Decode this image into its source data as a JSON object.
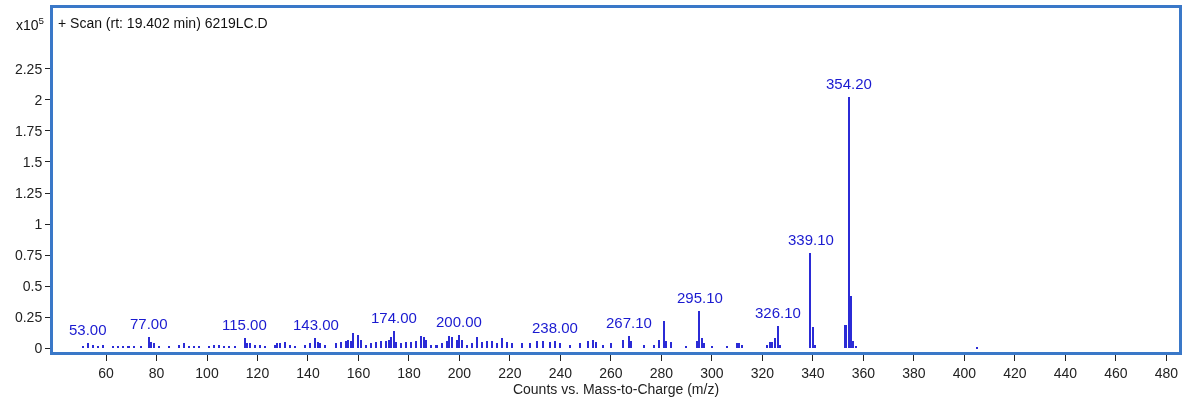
{
  "chart_data": {
    "type": "bar",
    "title": "+ Scan (rt: 19.402 min) 6219LC.D",
    "xlabel": "Counts vs. Mass-to-Charge (m/z)",
    "annotations": [
      "x10$^{5}$",
      {
        "text": "53.00",
        "x": 53,
        "y": 0.04
      },
      {
        "text": "77.00",
        "x": 77,
        "y": 0.09
      },
      {
        "text": "115.00",
        "x": 115,
        "y": 0.08
      },
      {
        "text": "143.00",
        "x": 143,
        "y": 0.08
      },
      {
        "text": "174.00",
        "x": 174,
        "y": 0.14
      },
      {
        "text": "200.00",
        "x": 200,
        "y": 0.11
      },
      {
        "text": "238.00",
        "x": 238,
        "y": 0.06
      },
      {
        "text": "267.10",
        "x": 267.1,
        "y": 0.1
      },
      {
        "text": "295.10",
        "x": 295.1,
        "y": 0.3
      },
      {
        "text": "326.10",
        "x": 326.1,
        "y": 0.18
      },
      {
        "text": "339.10",
        "x": 339.1,
        "y": 0.77
      },
      {
        "text": "354.20",
        "x": 354.2,
        "y": 2.02
      }
    ],
    "x": [
      51,
      53,
      55,
      57,
      59,
      63,
      65,
      67,
      69,
      71,
      74,
      77,
      78,
      79,
      81,
      85,
      89,
      91,
      93,
      95,
      97,
      101,
      103,
      105,
      107,
      109,
      111,
      115,
      116,
      117,
      119,
      121,
      123,
      127,
      128,
      129,
      131,
      133,
      135,
      139,
      141,
      143,
      144,
      145,
      147,
      151,
      153,
      155,
      156,
      157,
      158,
      160,
      161,
      163,
      165,
      167,
      169,
      171,
      172,
      173,
      174,
      175,
      177,
      179,
      181,
      183,
      185,
      186,
      187,
      189,
      191,
      193,
      195,
      196,
      197,
      199,
      200,
      201,
      203,
      205,
      207,
      209,
      211,
      213,
      215,
      217,
      219,
      221,
      225,
      228,
      231,
      233,
      236,
      238,
      240,
      244,
      248,
      251,
      253,
      254,
      257,
      260,
      265,
      267.1,
      268,
      273,
      277,
      279,
      281,
      282,
      284,
      290,
      294,
      295.1,
      296,
      297,
      300,
      306,
      310,
      311,
      312,
      322,
      323,
      324,
      325,
      326.1,
      327,
      339.1,
      340,
      341,
      353,
      354.2,
      355,
      356,
      357,
      405
    ],
    "values": [
      0.02,
      0.04,
      0.03,
      0.02,
      0.03,
      0.02,
      0.02,
      0.02,
      0.02,
      0.02,
      0.02,
      0.09,
      0.05,
      0.04,
      0.02,
      0.02,
      0.03,
      0.04,
      0.02,
      0.02,
      0.02,
      0.02,
      0.03,
      0.03,
      0.02,
      0.02,
      0.02,
      0.08,
      0.04,
      0.04,
      0.03,
      0.03,
      0.02,
      0.03,
      0.04,
      0.04,
      0.05,
      0.03,
      0.02,
      0.03,
      0.04,
      0.08,
      0.05,
      0.04,
      0.03,
      0.04,
      0.05,
      0.06,
      0.07,
      0.06,
      0.12,
      0.11,
      0.07,
      0.03,
      0.04,
      0.05,
      0.06,
      0.06,
      0.07,
      0.09,
      0.14,
      0.05,
      0.04,
      0.05,
      0.05,
      0.06,
      0.1,
      0.09,
      0.07,
      0.03,
      0.03,
      0.04,
      0.06,
      0.1,
      0.09,
      0.07,
      0.11,
      0.07,
      0.03,
      0.04,
      0.09,
      0.05,
      0.06,
      0.06,
      0.04,
      0.08,
      0.05,
      0.04,
      0.04,
      0.04,
      0.06,
      0.06,
      0.05,
      0.06,
      0.04,
      0.03,
      0.04,
      0.06,
      0.07,
      0.05,
      0.03,
      0.04,
      0.07,
      0.1,
      0.06,
      0.03,
      0.03,
      0.07,
      0.22,
      0.06,
      0.05,
      0.02,
      0.06,
      0.3,
      0.08,
      0.04,
      0.02,
      0.02,
      0.04,
      0.04,
      0.03,
      0.03,
      0.05,
      0.05,
      0.08,
      0.18,
      0.03,
      0.77,
      0.17,
      0.03,
      0.19,
      2.02,
      0.42,
      0.06,
      0.02,
      0.01
    ],
    "color": "#2b2bd6",
    "xlim": [
      39,
      485
    ],
    "xticks": [
      60,
      80,
      100,
      120,
      140,
      160,
      180,
      200,
      220,
      240,
      260,
      280,
      300,
      320,
      340,
      360,
      380,
      400,
      420,
      440,
      460,
      480
    ],
    "ylim": [
      -0.03,
      2.74
    ],
    "yticks": [
      0,
      0.25,
      0.5,
      0.75,
      1,
      1.25,
      1.5,
      1.75,
      2,
      2.25
    ],
    "legend": false
  }
}
